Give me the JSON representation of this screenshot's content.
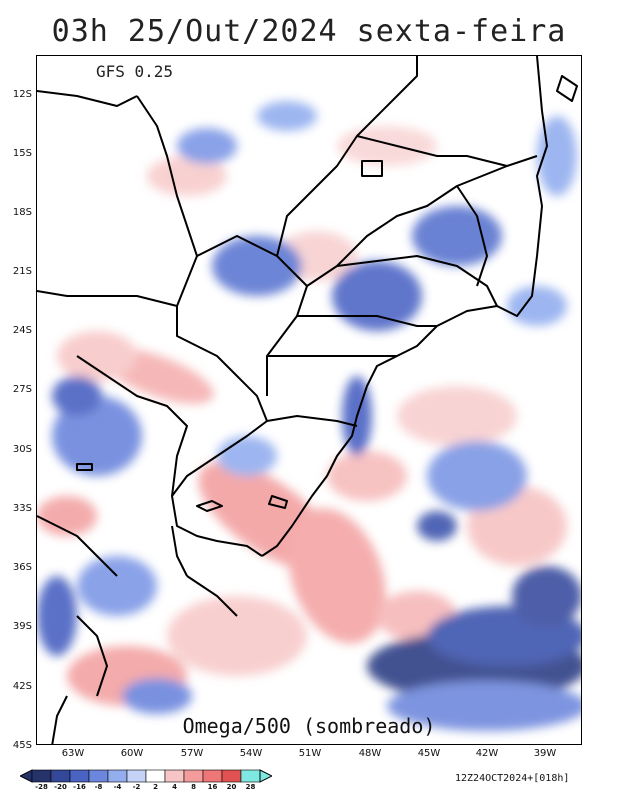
{
  "title": "03h 25/Out/2024 sexta-feira",
  "model": "GFS 0.25",
  "variable": "Omega/500 (sombreado)",
  "run_info": "12Z24OCT2024+[018h]",
  "latitude_labels": [
    "12S",
    "15S",
    "18S",
    "21S",
    "24S",
    "27S",
    "30S",
    "33S",
    "36S",
    "39S",
    "42S",
    "45S"
  ],
  "longitude_labels": [
    "63W",
    "60W",
    "57W",
    "54W",
    "51W",
    "48W",
    "45W",
    "42W",
    "39W"
  ],
  "colorbar": {
    "labels": [
      "-28",
      "-20",
      "-16",
      "-8",
      "-4",
      "-2",
      "2",
      "4",
      "8",
      "16",
      "20",
      "28"
    ],
    "colors": [
      "#26336b",
      "#34489a",
      "#4a62c2",
      "#6c86dd",
      "#93aeef",
      "#c4d3f7",
      "#ffffff",
      "#f6c6c6",
      "#f49b9b",
      "#ee7676",
      "#e05252",
      "#7fe8e2"
    ]
  }
}
